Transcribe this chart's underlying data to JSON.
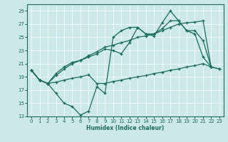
{
  "bg_color": "#cce8e8",
  "line_color": "#1a6b5a",
  "xlabel": "Humidex (Indice chaleur)",
  "yticks": [
    13,
    15,
    17,
    19,
    21,
    23,
    25,
    27,
    29
  ],
  "xticks": [
    0,
    1,
    2,
    3,
    4,
    5,
    6,
    7,
    8,
    9,
    10,
    11,
    12,
    13,
    14,
    15,
    16,
    17,
    18,
    19,
    20,
    21,
    22,
    23
  ],
  "xlim": [
    -0.5,
    23.5
  ],
  "ylim": [
    13,
    30
  ],
  "lines": [
    {
      "x": [
        0,
        1,
        2,
        3,
        4,
        5,
        6,
        7,
        8,
        9,
        10,
        11,
        12,
        13,
        14,
        15,
        16,
        17,
        18,
        19,
        20,
        21,
        22
      ],
      "y": [
        20.0,
        18.5,
        18.0,
        16.5,
        15.0,
        14.5,
        13.2,
        13.8,
        17.5,
        16.5,
        25.0,
        26.0,
        26.5,
        26.5,
        25.5,
        25.2,
        27.2,
        29.0,
        27.5,
        26.0,
        26.0,
        24.5,
        20.5
      ]
    },
    {
      "x": [
        0,
        1,
        2,
        3,
        4,
        5,
        6,
        7,
        8,
        9,
        10,
        11,
        12,
        13,
        14,
        15,
        16,
        17,
        18,
        19,
        20,
        21,
        22,
        23
      ],
      "y": [
        20.0,
        18.5,
        18.0,
        19.5,
        20.5,
        21.2,
        21.5,
        22.2,
        22.8,
        23.5,
        23.8,
        24.2,
        24.5,
        25.0,
        25.2,
        25.5,
        26.0,
        26.5,
        27.0,
        27.2,
        27.3,
        27.5,
        20.5,
        20.2
      ]
    },
    {
      "x": [
        0,
        1,
        2,
        3,
        4,
        5,
        6,
        7,
        8,
        9,
        10,
        11,
        12,
        13,
        14,
        15,
        16,
        17,
        18,
        19,
        20,
        21,
        22
      ],
      "y": [
        20.0,
        18.5,
        18.0,
        19.2,
        20.2,
        21.0,
        21.5,
        22.0,
        22.5,
        23.2,
        23.0,
        22.5,
        24.2,
        26.5,
        25.5,
        25.5,
        26.3,
        27.5,
        27.5,
        26.0,
        25.5,
        22.0,
        20.5
      ]
    },
    {
      "x": [
        0,
        1,
        2,
        3,
        4,
        5,
        6,
        7,
        8,
        9,
        10,
        11,
        12,
        13,
        14,
        15,
        16,
        17,
        18,
        19,
        20,
        21,
        22,
        23
      ],
      "y": [
        20.0,
        18.5,
        18.0,
        18.2,
        18.5,
        18.8,
        19.0,
        19.3,
        18.0,
        18.0,
        18.3,
        18.5,
        18.8,
        19.0,
        19.2,
        19.5,
        19.7,
        20.0,
        20.2,
        20.5,
        20.7,
        21.0,
        20.5,
        20.2
      ]
    }
  ]
}
